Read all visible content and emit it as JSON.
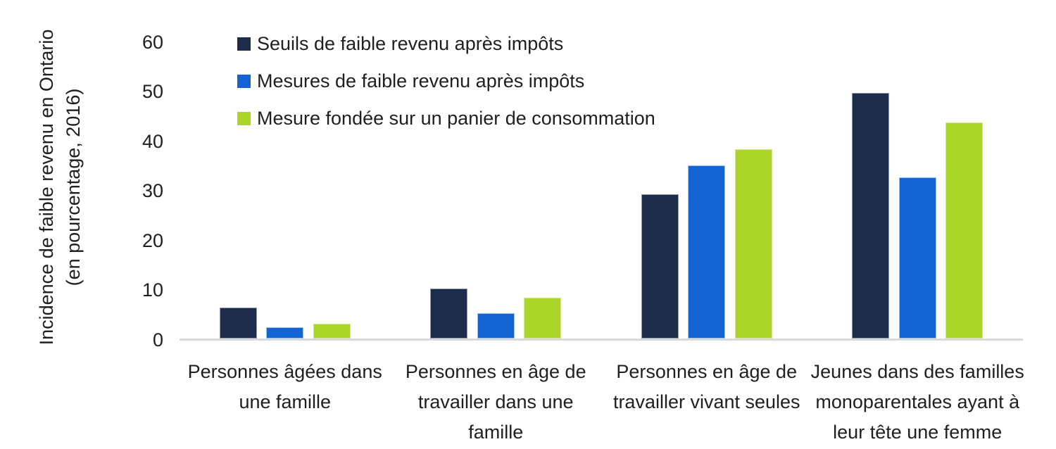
{
  "chart_data": {
    "type": "bar",
    "title": "",
    "ylabel": "Incidence de faible revenu en Ontario (en pourcentage, 2016)",
    "ylabel_lines": [
      "Incidence de faible revenu en Ontario",
      "(en pourcentage, 2016)"
    ],
    "ylim": [
      0,
      60
    ],
    "yticks": [
      0,
      10,
      20,
      30,
      40,
      50,
      60
    ],
    "grid": false,
    "legend_position": "top-left",
    "background_color": "#ffffff",
    "axis_line_color": "#d9d9d9",
    "text_color": "#1f1f1f",
    "categories": [
      "Personnes âgées dans une famille",
      "Personnes en âge de travailler dans une famille",
      "Personnes en âge de travailler vivant seules",
      "Jeunes dans des familles monoparentales ayant à leur tête une femme"
    ],
    "category_lines": [
      [
        "Personnes âgées dans",
        "une famille"
      ],
      [
        "Personnes en âge de",
        "travailler dans une",
        "famille"
      ],
      [
        "Personnes en âge de",
        "travailler vivant seules"
      ],
      [
        "Jeunes dans des familles",
        "monoparentales ayant à",
        "leur tête une femme"
      ]
    ],
    "series": [
      {
        "name": "Seuils de faible revenu après impôts",
        "color": "#1e2c4b",
        "edge_color": "#8e9bb5",
        "values": [
          6.2,
          10.1,
          29.1,
          49.5
        ]
      },
      {
        "name": "Mesures de faible revenu après impôts",
        "color": "#1463d2",
        "edge_color": "#9dc8f0",
        "values": [
          2.3,
          5.1,
          34.9,
          32.5
        ]
      },
      {
        "name": "Mesure fondée sur un panier de consommation",
        "color": "#abd629",
        "edge_color": "#d4e894",
        "values": [
          3.0,
          8.2,
          38.1,
          43.5
        ]
      }
    ]
  }
}
